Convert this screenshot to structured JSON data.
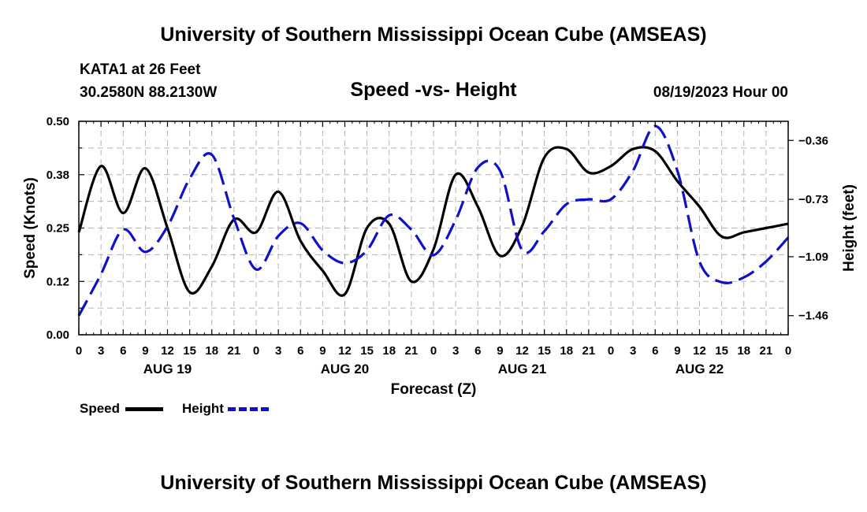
{
  "header": {
    "title": "University of Southern Mississippi Ocean Cube (AMSEAS)",
    "station": "KATA1 at 26 Feet",
    "coords": "30.2580N  88.2130W",
    "datetime": "08/19/2023 Hour 00",
    "bottom_title": "University of Southern Mississippi Ocean Cube (AMSEAS)"
  },
  "legend": {
    "speed_label": "Speed",
    "height_label": "Height"
  },
  "colors": {
    "speed": "#000000",
    "height": "#1010c8",
    "grid": "#b4b4b4"
  },
  "chart_data": {
    "type": "line",
    "title": "Speed -vs- Height",
    "xlabel": "Forecast (Z)",
    "ylabel": "Speed (Knots)",
    "y2label": "Height (feet)",
    "ylim": [
      0,
      0.5
    ],
    "y2lim": [
      -1.58,
      -0.24
    ],
    "yticks": [
      "0.00",
      "0.12",
      "0.25",
      "0.38",
      "0.50"
    ],
    "y2ticks": [
      {
        "value": -0.36,
        "label": "−0.36"
      },
      {
        "value": -0.73,
        "label": "−0.73"
      },
      {
        "value": -1.09,
        "label": "−1.09"
      },
      {
        "value": -1.46,
        "label": "−1.46"
      }
    ],
    "xlim": [
      0,
      96
    ],
    "xtick_labels": [
      "0",
      "3",
      "6",
      "9",
      "12",
      "15",
      "18",
      "21",
      "0",
      "3",
      "6",
      "9",
      "12",
      "15",
      "18",
      "21",
      "0",
      "3",
      "6",
      "9",
      "12",
      "15",
      "18",
      "21",
      "0",
      "3",
      "6",
      "9",
      "12",
      "15",
      "18",
      "21",
      "0"
    ],
    "day_labels": [
      {
        "hour": 12,
        "label": "AUG 19"
      },
      {
        "hour": 36,
        "label": "AUG 20"
      },
      {
        "hour": 60,
        "label": "AUG 21"
      },
      {
        "hour": 84,
        "label": "AUG 22"
      }
    ],
    "series": [
      {
        "name": "Speed",
        "axis": "left",
        "x": [
          0,
          3,
          6,
          9,
          12,
          15,
          18,
          21,
          24,
          27,
          30,
          33,
          36,
          39,
          42,
          45,
          48,
          51,
          54,
          57,
          60,
          63,
          66,
          69,
          72,
          75,
          78,
          81,
          84,
          87,
          90,
          93,
          96
        ],
        "values": [
          0.24,
          0.395,
          0.285,
          0.39,
          0.25,
          0.1,
          0.16,
          0.27,
          0.24,
          0.335,
          0.22,
          0.15,
          0.095,
          0.25,
          0.26,
          0.125,
          0.2,
          0.375,
          0.3,
          0.185,
          0.255,
          0.415,
          0.435,
          0.38,
          0.395,
          0.435,
          0.43,
          0.36,
          0.3,
          0.23,
          0.24,
          0.25,
          0.26
        ]
      },
      {
        "name": "Height",
        "axis": "right",
        "x": [
          0,
          3,
          6,
          9,
          12,
          15,
          18,
          21,
          24,
          27,
          30,
          33,
          36,
          39,
          42,
          45,
          48,
          51,
          54,
          57,
          60,
          63,
          66,
          69,
          72,
          75,
          78,
          81,
          84,
          87,
          90,
          93,
          96
        ],
        "values": [
          -1.46,
          -1.2,
          -0.92,
          -1.06,
          -0.9,
          -0.6,
          -0.45,
          -0.85,
          -1.17,
          -0.96,
          -0.88,
          -1.05,
          -1.13,
          -1.05,
          -0.83,
          -0.92,
          -1.08,
          -0.86,
          -0.53,
          -0.55,
          -1.05,
          -0.93,
          -0.76,
          -0.73,
          -0.73,
          -0.55,
          -0.27,
          -0.55,
          -1.12,
          -1.25,
          -1.22,
          -1.12,
          -0.97
        ]
      }
    ]
  }
}
